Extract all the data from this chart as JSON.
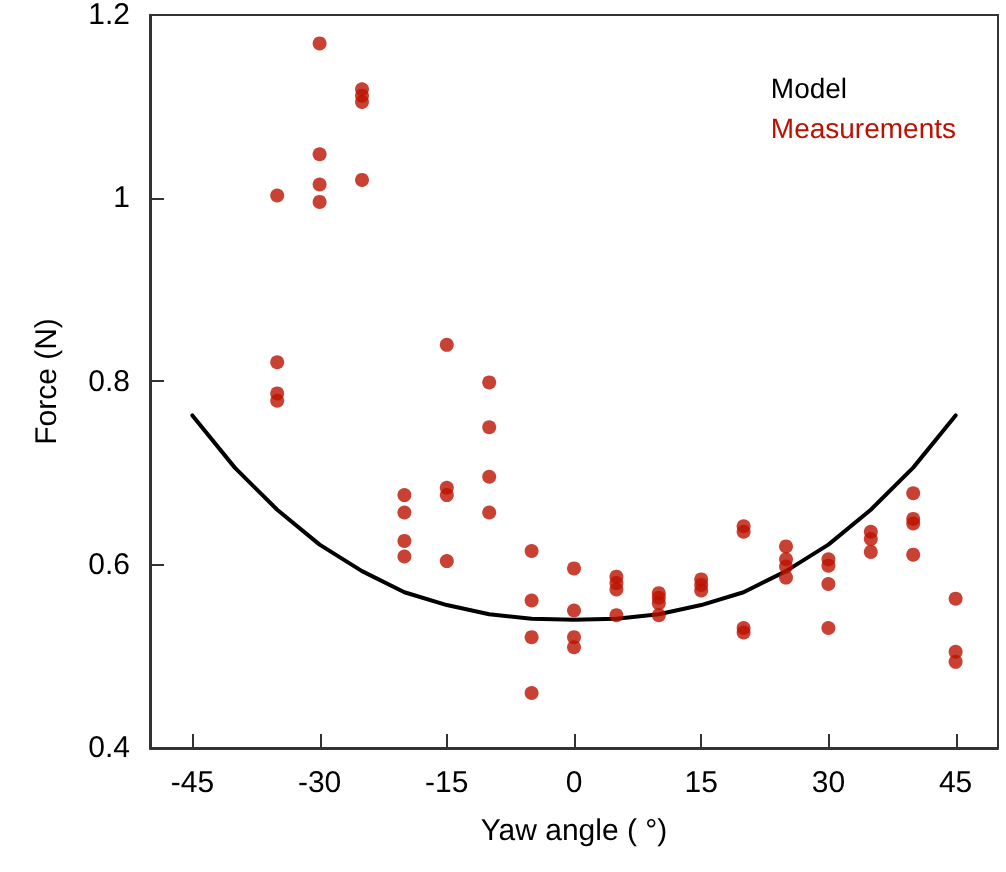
{
  "chart_data": {
    "type": "scatter",
    "xlabel": "Yaw angle ( °)",
    "ylabel": "Force (N)",
    "xlim": [
      -50,
      50
    ],
    "xticks": [
      -45,
      -30,
      -15,
      0,
      15,
      30,
      45
    ],
    "ylim": [
      0.4,
      1.2
    ],
    "yticks": [
      0.4,
      0.6,
      0.8,
      1,
      1.2
    ],
    "grid": false,
    "legend": "top right",
    "marker": "circle",
    "series": [
      {
        "name": "Model",
        "type": "line",
        "color": "#000000",
        "marker": "none",
        "line_style": "solid",
        "x": [
          -45,
          -40,
          -35,
          -30,
          -25,
          -20,
          -15,
          -10,
          -5,
          0,
          5,
          10,
          15,
          20,
          25,
          30,
          35,
          40,
          45
        ],
        "values": [
          0.763,
          0.706,
          0.66,
          0.622,
          0.593,
          0.57,
          0.556,
          0.546,
          0.541,
          0.54,
          0.541,
          0.546,
          0.556,
          0.57,
          0.593,
          0.622,
          0.66,
          0.706,
          0.763
        ]
      },
      {
        "name": "Measurements",
        "color": "#bb1100",
        "x": [
          -35,
          -35,
          -35,
          -35,
          -30,
          -30,
          -30,
          -30,
          -25,
          -25,
          -25,
          -25,
          -20,
          -20,
          -20,
          -20,
          -15,
          -15,
          -15,
          -15,
          -10,
          -10,
          -10,
          -10,
          -5,
          -5,
          -5,
          -5,
          0,
          0,
          0,
          0,
          5,
          5,
          5,
          5,
          10,
          10,
          10,
          10,
          15,
          15,
          15,
          20,
          20,
          20,
          20,
          25,
          25,
          25,
          25,
          30,
          30,
          30,
          30,
          35,
          35,
          35,
          40,
          40,
          40,
          40,
          45,
          45,
          45
        ],
        "values": [
          1.003,
          0.821,
          0.787,
          0.779,
          1.169,
          1.048,
          1.015,
          0.996,
          1.119,
          1.112,
          1.105,
          1.02,
          0.676,
          0.657,
          0.626,
          0.609,
          0.84,
          0.684,
          0.676,
          0.604,
          0.799,
          0.75,
          0.696,
          0.657,
          0.615,
          0.561,
          0.521,
          0.46,
          0.596,
          0.55,
          0.521,
          0.51,
          0.587,
          0.58,
          0.573,
          0.545,
          0.569,
          0.564,
          0.558,
          0.545,
          0.584,
          0.578,
          0.572,
          0.642,
          0.636,
          0.531,
          0.526,
          0.62,
          0.606,
          0.598,
          0.586,
          0.606,
          0.599,
          0.579,
          0.531,
          0.636,
          0.628,
          0.614,
          0.678,
          0.65,
          0.645,
          0.611,
          0.563,
          0.505,
          0.494
        ]
      }
    ]
  }
}
